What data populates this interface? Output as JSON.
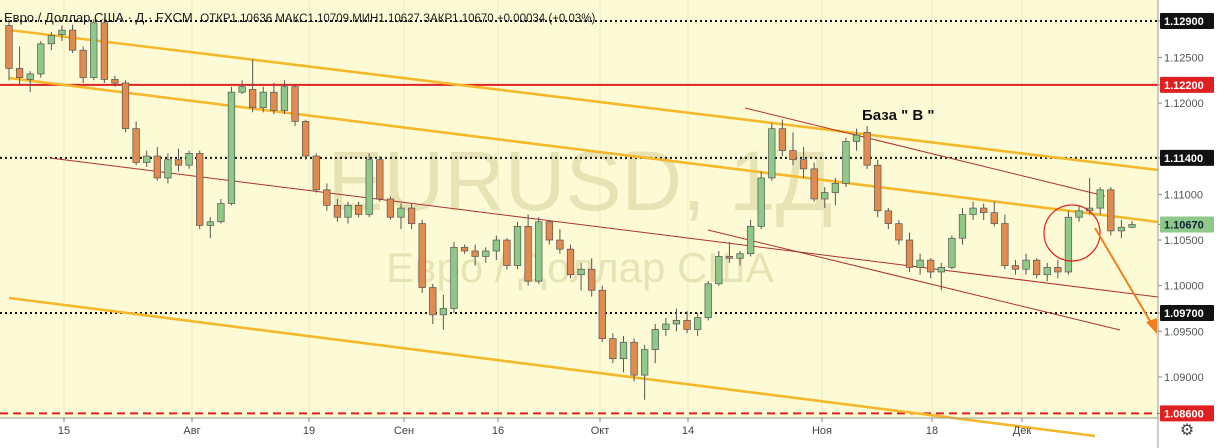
{
  "header": {
    "symbol": "Евро / Доллар США · Д · FXCM",
    "ohlc": "ОТКР1.10636 МАКС1.10709 МИН1.10627 ЗАКР1.10670 +0.00034 (+0.03%)"
  },
  "watermark": {
    "ticker": "EURUSD, 1Д",
    "name": "Евро / Доллар США"
  },
  "annotation": "База \" В \"",
  "colors": {
    "background": "#fdfbd5",
    "up_candle": "#8ec98a",
    "down_candle": "#e38a4f",
    "candle_border": "#555555",
    "channel": "#f5b82a",
    "red_line": "#e02020",
    "thin_red": "#b0302e",
    "dotted": "#111111",
    "arrow": "#f07f1e"
  },
  "chart_data": {
    "type": "candlestick",
    "title": "Евро / Доллар США · Д · FXCM",
    "ylim": [
      1.0855,
      1.1313
    ],
    "y_ticks": [
      "1.12900",
      "1.12500",
      "1.12200",
      "1.12000",
      "1.11400",
      "1.11000",
      "1.10670",
      "1.10500",
      "1.10000",
      "1.09700",
      "1.09500",
      "1.09000",
      "1.08600"
    ],
    "x_ticks": [
      "15",
      "Авг",
      "19",
      "Сен",
      "16",
      "Окт",
      "14",
      "Ноя",
      "18",
      "Дек"
    ],
    "level_lines": [
      {
        "label": "1.12900",
        "value": 1.129,
        "style": "dotted"
      },
      {
        "label": "1.12200",
        "value": 1.122,
        "style": "solid-red"
      },
      {
        "label": "1.11400",
        "value": 1.114,
        "style": "dotted"
      },
      {
        "label": "1.09700",
        "value": 1.097,
        "style": "dotted"
      },
      {
        "label": "1.08600",
        "value": 1.086,
        "style": "dashed-red"
      }
    ],
    "current_price": "1.10670",
    "ohlc": [
      [
        1.1285,
        1.1292,
        1.1225,
        1.1238
      ],
      [
        1.1238,
        1.1262,
        1.122,
        1.1228
      ],
      [
        1.1226,
        1.1235,
        1.1212,
        1.1232
      ],
      [
        1.1232,
        1.1268,
        1.1228,
        1.1265
      ],
      [
        1.1265,
        1.1278,
        1.1258,
        1.1274
      ],
      [
        1.1275,
        1.1285,
        1.1268,
        1.128
      ],
      [
        1.128,
        1.1286,
        1.1255,
        1.1258
      ],
      [
        1.1258,
        1.1262,
        1.1222,
        1.1228
      ],
      [
        1.1228,
        1.1292,
        1.1225,
        1.1288
      ],
      [
        1.1288,
        1.1293,
        1.1222,
        1.1226
      ],
      [
        1.1226,
        1.123,
        1.1218,
        1.1222
      ],
      [
        1.1222,
        1.1225,
        1.1168,
        1.1172
      ],
      [
        1.1172,
        1.118,
        1.1132,
        1.1135
      ],
      [
        1.1135,
        1.1148,
        1.113,
        1.1142
      ],
      [
        1.1142,
        1.1152,
        1.1115,
        1.1118
      ],
      [
        1.1118,
        1.1145,
        1.1112,
        1.1138
      ],
      [
        1.1138,
        1.115,
        1.1125,
        1.1132
      ],
      [
        1.1132,
        1.1148,
        1.1128,
        1.1145
      ],
      [
        1.1145,
        1.1148,
        1.1062,
        1.1066
      ],
      [
        1.1066,
        1.1075,
        1.1052,
        1.107
      ],
      [
        1.107,
        1.1095,
        1.1068,
        1.109
      ],
      [
        1.109,
        1.1218,
        1.1088,
        1.1212
      ],
      [
        1.1212,
        1.1225,
        1.121,
        1.1218
      ],
      [
        1.1215,
        1.1248,
        1.119,
        1.1195
      ],
      [
        1.1195,
        1.1218,
        1.119,
        1.1212
      ],
      [
        1.1212,
        1.1222,
        1.1188,
        1.1192
      ],
      [
        1.1192,
        1.1225,
        1.1188,
        1.1218
      ],
      [
        1.1218,
        1.122,
        1.1175,
        1.118
      ],
      [
        1.118,
        1.1182,
        1.1138,
        1.1142
      ],
      [
        1.1142,
        1.1145,
        1.1102,
        1.1105
      ],
      [
        1.1105,
        1.1112,
        1.1082,
        1.1088
      ],
      [
        1.1088,
        1.1095,
        1.107,
        1.1075
      ],
      [
        1.1075,
        1.1092,
        1.1068,
        1.1088
      ],
      [
        1.1088,
        1.1092,
        1.1075,
        1.1078
      ],
      [
        1.1078,
        1.1145,
        1.1075,
        1.1138
      ],
      [
        1.1138,
        1.1142,
        1.1092,
        1.1095
      ],
      [
        1.1095,
        1.1098,
        1.1072,
        1.1075
      ],
      [
        1.1075,
        1.109,
        1.1062,
        1.1085
      ],
      [
        1.1085,
        1.109,
        1.1062,
        1.1068
      ],
      [
        1.1068,
        1.1072,
        1.0992,
        1.0998
      ],
      [
        1.0998,
        1.1002,
        1.0958,
        1.0968
      ],
      [
        1.0968,
        1.099,
        1.0952,
        1.0975
      ],
      [
        1.0975,
        1.1048,
        1.097,
        1.1042
      ],
      [
        1.1042,
        1.1045,
        1.1035,
        1.1038
      ],
      [
        1.1038,
        1.1045,
        1.1022,
        1.1032
      ],
      [
        1.1032,
        1.1042,
        1.1025,
        1.1038
      ],
      [
        1.1038,
        1.1055,
        1.1028,
        1.105
      ],
      [
        1.105,
        1.1052,
        1.1018,
        1.1022
      ],
      [
        1.1022,
        1.107,
        1.1018,
        1.1065
      ],
      [
        1.1065,
        1.1078,
        1.1,
        1.1005
      ],
      [
        1.1005,
        1.1075,
        1.1002,
        1.107
      ],
      [
        1.107,
        1.1072,
        1.1045,
        1.105
      ],
      [
        1.105,
        1.1062,
        1.1035,
        1.104
      ],
      [
        1.104,
        1.1045,
        1.1008,
        1.1012
      ],
      [
        1.1012,
        1.1025,
        1.0995,
        1.1018
      ],
      [
        1.1018,
        1.103,
        1.0988,
        1.0995
      ],
      [
        1.0995,
        1.1,
        1.0938,
        1.0942
      ],
      [
        1.0942,
        1.0948,
        1.0915,
        1.092
      ],
      [
        1.092,
        1.0945,
        1.0905,
        1.0938
      ],
      [
        1.0938,
        1.0942,
        1.0895,
        1.0902
      ],
      [
        1.0902,
        1.0935,
        1.0875,
        1.093
      ],
      [
        1.093,
        1.0958,
        1.0915,
        1.0952
      ],
      [
        1.0952,
        1.0965,
        1.0945,
        1.0958
      ],
      [
        1.0958,
        1.0975,
        1.095,
        1.0962
      ],
      [
        1.0962,
        1.0972,
        1.0948,
        1.0952
      ],
      [
        1.0952,
        1.097,
        1.0945,
        1.0965
      ],
      [
        1.0965,
        1.1005,
        1.0962,
        1.1002
      ],
      [
        1.1002,
        1.1038,
        1.1,
        1.1032
      ],
      [
        1.1032,
        1.1048,
        1.1025,
        1.103
      ],
      [
        1.103,
        1.1038,
        1.1022,
        1.1035
      ],
      [
        1.1035,
        1.1072,
        1.1032,
        1.1065
      ],
      [
        1.1065,
        1.1125,
        1.1062,
        1.1118
      ],
      [
        1.1118,
        1.1178,
        1.1115,
        1.1172
      ],
      [
        1.1172,
        1.1182,
        1.1142,
        1.1148
      ],
      [
        1.1148,
        1.1168,
        1.1132,
        1.1138
      ],
      [
        1.1138,
        1.1152,
        1.1118,
        1.1128
      ],
      [
        1.1128,
        1.1135,
        1.1092,
        1.1095
      ],
      [
        1.1095,
        1.1108,
        1.1085,
        1.1102
      ],
      [
        1.1102,
        1.1118,
        1.1088,
        1.1112
      ],
      [
        1.1112,
        1.1162,
        1.1108,
        1.1158
      ],
      [
        1.1158,
        1.1172,
        1.1148,
        1.1165
      ],
      [
        1.1168,
        1.1175,
        1.1128,
        1.1132
      ],
      [
        1.1132,
        1.1138,
        1.1075,
        1.1082
      ],
      [
        1.1082,
        1.1085,
        1.1062,
        1.1068
      ],
      [
        1.1068,
        1.1072,
        1.1045,
        1.105
      ],
      [
        1.105,
        1.1058,
        1.1015,
        1.102
      ],
      [
        1.102,
        1.1035,
        1.1012,
        1.1028
      ],
      [
        1.1028,
        1.103,
        1.1008,
        1.1015
      ],
      [
        1.1015,
        1.1025,
        1.0995,
        1.102
      ],
      [
        1.102,
        1.1055,
        1.1018,
        1.1052
      ],
      [
        1.1052,
        1.1085,
        1.1045,
        1.1078
      ],
      [
        1.1078,
        1.1092,
        1.1072,
        1.1085
      ],
      [
        1.1085,
        1.109,
        1.1072,
        1.108
      ],
      [
        1.108,
        1.1092,
        1.1065,
        1.1068
      ],
      [
        1.1068,
        1.1078,
        1.1018,
        1.1022
      ],
      [
        1.1022,
        1.1028,
        1.1012,
        1.1018
      ],
      [
        1.1018,
        1.1035,
        1.1012,
        1.1028
      ],
      [
        1.1028,
        1.103,
        1.1008,
        1.1012
      ],
      [
        1.1012,
        1.1025,
        1.1005,
        1.102
      ],
      [
        1.102,
        1.1028,
        1.1008,
        1.1015
      ],
      [
        1.1015,
        1.1082,
        1.1012,
        1.1075
      ],
      [
        1.1075,
        1.1088,
        1.107,
        1.1082
      ],
      [
        1.1082,
        1.1118,
        1.1078,
        1.1085
      ],
      [
        1.1085,
        1.1108,
        1.1078,
        1.1105
      ],
      [
        1.1105,
        1.1108,
        1.1055,
        1.106
      ],
      [
        1.106,
        1.1072,
        1.1052,
        1.1064
      ],
      [
        1.1064,
        1.1071,
        1.1063,
        1.1067
      ]
    ]
  }
}
